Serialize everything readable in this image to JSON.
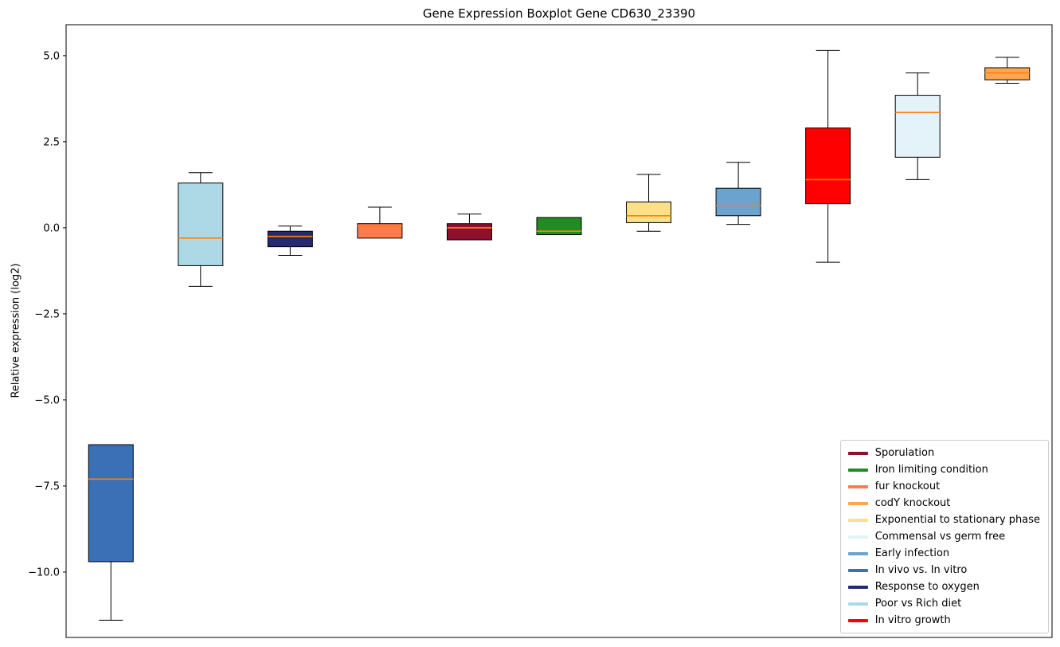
{
  "figure": {
    "title": "Gene Expression Boxplot Gene CD630_23390",
    "ylabel": "Relative expression (log2)"
  },
  "chart_data": {
    "type": "boxplot",
    "title": "Gene Expression Boxplot Gene CD630_23390",
    "xlabel": "",
    "ylabel": "Relative expression (log2)",
    "ylim": [
      -11.9,
      5.9
    ],
    "yticks": [
      5.0,
      2.5,
      0.0,
      -2.5,
      -5.0,
      -7.5,
      -10.0
    ],
    "grid": false,
    "legend_position": "lower right",
    "median_color": "#ff7f0e",
    "box_edge_color": "#000000",
    "boxes": [
      {
        "name": "In vivo vs. In vitro",
        "color": "#3b6fb6",
        "whislo": -11.4,
        "q1": -9.7,
        "med": -7.3,
        "q3": -6.3,
        "whishi": -6.3
      },
      {
        "name": "Poor vs Rich diet",
        "color": "#add8e6",
        "whislo": -1.7,
        "q1": -1.1,
        "med": -0.3,
        "q3": 1.3,
        "whishi": 1.6
      },
      {
        "name": "Response to oxygen",
        "color": "#252a6e",
        "whislo": -0.8,
        "q1": -0.55,
        "med": -0.25,
        "q3": -0.1,
        "whishi": 0.05
      },
      {
        "name": "fur knockout",
        "color": "#ff7a4d",
        "whislo": -0.3,
        "q1": -0.3,
        "med": 0.05,
        "q3": 0.12,
        "whishi": 0.6
      },
      {
        "name": "Sporulation",
        "color": "#8f0f2e",
        "whislo": -0.35,
        "q1": -0.35,
        "med": 0.0,
        "q3": 0.12,
        "whishi": 0.4
      },
      {
        "name": "Iron limiting condition",
        "color": "#228b22",
        "whislo": -0.2,
        "q1": -0.2,
        "med": -0.1,
        "q3": 0.3,
        "whishi": 0.3
      },
      {
        "name": "Exponential to stationary phase",
        "color": "#ffe08a",
        "whislo": -0.1,
        "q1": 0.15,
        "med": 0.35,
        "q3": 0.75,
        "whishi": 1.55
      },
      {
        "name": "Early infection",
        "color": "#6ba3cf",
        "whislo": 0.1,
        "q1": 0.35,
        "med": 0.65,
        "q3": 1.15,
        "whishi": 1.9
      },
      {
        "name": "In vitro growth",
        "color": "#ff0000",
        "whislo": -1.0,
        "q1": 0.7,
        "med": 1.4,
        "q3": 2.9,
        "whishi": 5.15
      },
      {
        "name": "Commensal vs germ free",
        "color": "#e4f2fa",
        "whislo": 1.4,
        "q1": 2.05,
        "med": 3.35,
        "q3": 3.85,
        "whishi": 4.5
      },
      {
        "name": "codY knockout",
        "color": "#ffa652",
        "whislo": 4.2,
        "q1": 4.3,
        "med": 4.5,
        "q3": 4.65,
        "whishi": 4.95
      }
    ],
    "legend": [
      {
        "label": "Sporulation",
        "color": "#8f0f2e"
      },
      {
        "label": "Iron limiting condition",
        "color": "#228b22"
      },
      {
        "label": "fur knockout",
        "color": "#ff7a4d"
      },
      {
        "label": "codY knockout",
        "color": "#ffa652"
      },
      {
        "label": "Exponential to stationary phase",
        "color": "#ffe08a"
      },
      {
        "label": "Commensal vs germ free",
        "color": "#e4f2fa"
      },
      {
        "label": "Early infection",
        "color": "#6ba3cf"
      },
      {
        "label": "In vivo vs. In vitro",
        "color": "#3b6fb6"
      },
      {
        "label": "Response to oxygen",
        "color": "#252a6e"
      },
      {
        "label": "Poor vs Rich diet",
        "color": "#add8e6"
      },
      {
        "label": "In vitro growth",
        "color": "#ff0000"
      }
    ]
  }
}
